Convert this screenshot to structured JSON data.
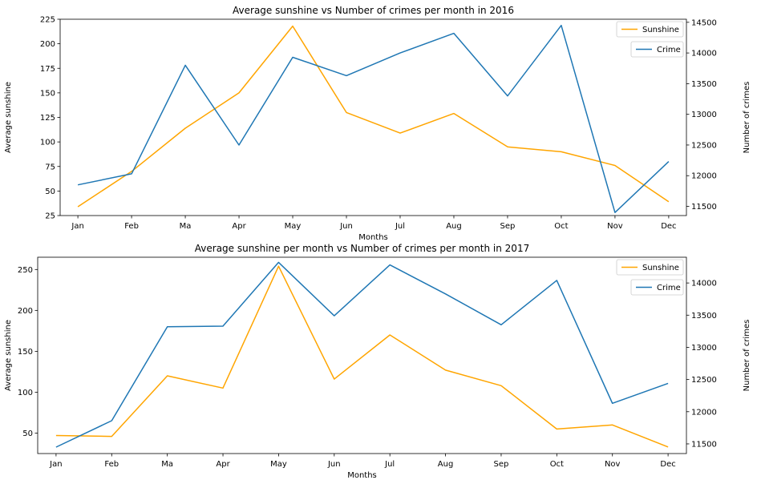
{
  "chart_data": [
    {
      "type": "line",
      "title": "Average sunshine vs Number of crimes per month in 2016",
      "xlabel": "Months",
      "ylabel": "Average sunshine",
      "y2label": "Number of crimes",
      "categories": [
        "Jan",
        "Feb",
        "Ma",
        "Apr",
        "May",
        "Jun",
        "Jul",
        "Aug",
        "Sep",
        "Oct",
        "Nov",
        "Dec"
      ],
      "ylim": [
        25,
        225
      ],
      "yticks": [
        25,
        50,
        75,
        100,
        125,
        150,
        175,
        200,
        225
      ],
      "y2lim": [
        11350,
        14550
      ],
      "y2ticks": [
        11500,
        12000,
        12500,
        13000,
        13500,
        14000,
        14500
      ],
      "grid": false,
      "series": [
        {
          "name": "Sunshine",
          "axis": "left",
          "color": "#FFA500",
          "values": [
            34,
            70,
            114,
            150,
            218,
            130,
            109,
            129,
            95,
            90,
            76,
            39
          ],
          "legend_position": "top-right"
        },
        {
          "name": "Crime",
          "axis": "right",
          "color": "#1F77B4",
          "values": [
            11850,
            12030,
            13800,
            12500,
            13930,
            13630,
            14000,
            14320,
            13300,
            14450,
            11400,
            12230
          ],
          "legend_position": "top-right"
        }
      ]
    },
    {
      "type": "line",
      "title": "Average sunshine per month vs Number of crimes per month in 2017",
      "xlabel": "Months",
      "ylabel": "Average sunshine",
      "y2label": "Number of crimes",
      "categories": [
        "Jan",
        "Feb",
        "Ma",
        "Apr",
        "May",
        "Jun",
        "Jul",
        "Aug",
        "Sep",
        "Oct",
        "Nov",
        "Dec"
      ],
      "ylim": [
        25,
        265
      ],
      "yticks": [
        50,
        100,
        150,
        200,
        250
      ],
      "y2lim": [
        11350,
        14400
      ],
      "y2ticks": [
        11500,
        12000,
        12500,
        13000,
        13500,
        14000
      ],
      "grid": false,
      "series": [
        {
          "name": "Sunshine",
          "axis": "left",
          "color": "#FFA500",
          "values": [
            47,
            46,
            120,
            105,
            254,
            116,
            170,
            127,
            108,
            55,
            60,
            33
          ],
          "legend_position": "top-right"
        },
        {
          "name": "Crime",
          "axis": "right",
          "color": "#1F77B4",
          "values": [
            11450,
            11860,
            13320,
            13330,
            14320,
            13490,
            14280,
            13830,
            13350,
            14040,
            12130,
            12440
          ],
          "legend_position": "top-right"
        }
      ]
    }
  ]
}
